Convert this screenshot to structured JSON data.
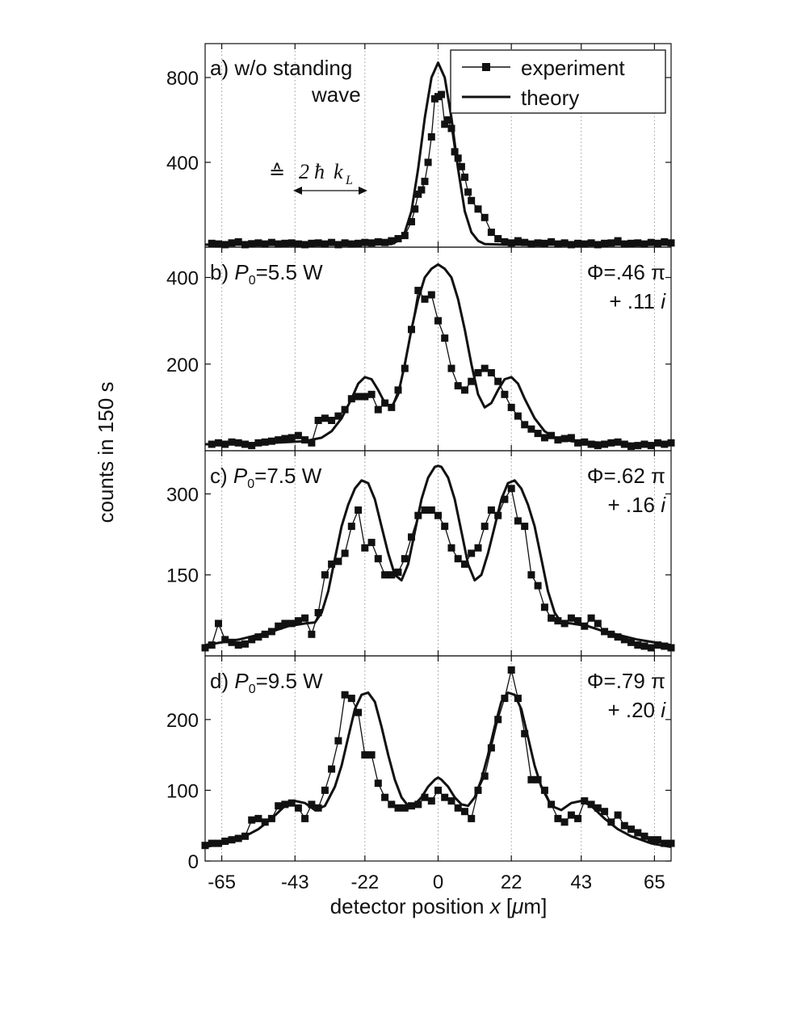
{
  "figure": {
    "ylabel": "counts in 150 s",
    "xlabel_pre": "detector position ",
    "xlabel_var": "x",
    "xlabel_post": " [",
    "xlabel_mu": "μ",
    "xlabel_unit": "m]",
    "legend": {
      "experiment": "experiment",
      "theory": "theory"
    },
    "annotation_symbol": "≙",
    "annotation_two": "2",
    "annotation_hbar": "ħ",
    "annotation_k": "k",
    "annotation_sub": "L",
    "colors": {
      "line": "#111111",
      "grid": "#9a9a9a"
    }
  },
  "chart_data": [
    {
      "type": "line",
      "panel_label": "a) w/o standing",
      "panel_label_2": "wave",
      "xlim": [
        -70,
        70
      ],
      "ylim": [
        0,
        960
      ],
      "yticks": [
        400,
        800
      ],
      "xticks": [
        -65,
        -43,
        -22,
        0,
        22,
        43,
        65
      ],
      "grid": "vertical dotted",
      "legend_position": "top-right",
      "series": [
        {
          "name": "experiment",
          "marker": "square",
          "x": [
            -68,
            -66,
            -64,
            -62,
            -60,
            -58,
            -56,
            -54,
            -52,
            -50,
            -48,
            -46,
            -44,
            -42,
            -40,
            -38,
            -36,
            -34,
            -32,
            -30,
            -28,
            -26,
            -24,
            -22,
            -20,
            -18,
            -16,
            -14,
            -12,
            -10,
            -8,
            -7,
            -6,
            -5,
            -4,
            -3,
            -2,
            -1,
            0,
            1,
            2,
            3,
            4,
            5,
            6,
            7,
            8,
            9,
            10,
            12,
            14,
            16,
            18,
            20,
            22,
            24,
            26,
            28,
            30,
            32,
            34,
            36,
            38,
            40,
            42,
            44,
            46,
            48,
            50,
            52,
            54,
            56,
            58,
            60,
            62,
            64,
            66,
            68,
            70
          ],
          "y": [
            18,
            15,
            12,
            20,
            25,
            12,
            16,
            20,
            15,
            22,
            15,
            18,
            20,
            15,
            12,
            18,
            20,
            15,
            22,
            12,
            20,
            15,
            18,
            22,
            20,
            25,
            22,
            30,
            40,
            55,
            120,
            180,
            250,
            270,
            310,
            400,
            520,
            700,
            710,
            720,
            580,
            600,
            560,
            450,
            420,
            380,
            330,
            260,
            220,
            180,
            140,
            70,
            40,
            25,
            20,
            30,
            22,
            15,
            20,
            18,
            25,
            15,
            20,
            12,
            18,
            15,
            20,
            12,
            18,
            20,
            30,
            15,
            18,
            20,
            15,
            22,
            18,
            25,
            20
          ]
        },
        {
          "name": "theory",
          "x": [
            -70,
            -20,
            -14,
            -12,
            -10,
            -8,
            -6,
            -4,
            -2,
            0,
            2,
            4,
            6,
            8,
            10,
            12,
            14,
            20,
            70
          ],
          "y": [
            12,
            12,
            15,
            30,
            70,
            170,
            370,
            610,
            800,
            870,
            800,
            610,
            370,
            170,
            70,
            30,
            15,
            12,
            12
          ]
        }
      ]
    },
    {
      "type": "line",
      "panel_label_pre": "b) ",
      "panel_label_var": "P",
      "panel_label_sub": "0",
      "panel_label_post": "=5.5 W",
      "phi": "Φ=.46 π",
      "phi_imag": "+ .11 ",
      "phi_i": "i",
      "xlim": [
        -70,
        70
      ],
      "ylim": [
        0,
        470
      ],
      "yticks": [
        200,
        400
      ],
      "xticks": [
        -65,
        -43,
        -22,
        0,
        22,
        43,
        65
      ],
      "grid": "vertical dotted",
      "series": [
        {
          "name": "experiment",
          "marker": "square",
          "x": [
            -68,
            -66,
            -64,
            -62,
            -60,
            -58,
            -56,
            -54,
            -52,
            -50,
            -48,
            -46,
            -44,
            -42,
            -40,
            -38,
            -36,
            -34,
            -32,
            -30,
            -28,
            -26,
            -24,
            -22,
            -20,
            -18,
            -16,
            -14,
            -12,
            -10,
            -8,
            -6,
            -4,
            -2,
            0,
            2,
            4,
            6,
            8,
            10,
            12,
            14,
            16,
            18,
            20,
            22,
            24,
            26,
            28,
            30,
            32,
            34,
            36,
            38,
            40,
            42,
            44,
            46,
            48,
            50,
            52,
            54,
            56,
            58,
            60,
            62,
            64,
            66,
            68,
            70
          ],
          "y": [
            15,
            18,
            15,
            20,
            18,
            15,
            12,
            18,
            20,
            22,
            25,
            28,
            30,
            35,
            25,
            18,
            70,
            75,
            70,
            80,
            95,
            120,
            125,
            125,
            130,
            95,
            110,
            100,
            140,
            190,
            280,
            370,
            350,
            360,
            300,
            260,
            190,
            150,
            140,
            160,
            180,
            190,
            180,
            160,
            130,
            100,
            80,
            60,
            50,
            40,
            30,
            35,
            25,
            28,
            30,
            18,
            20,
            15,
            12,
            15,
            18,
            20,
            15,
            10,
            12,
            15,
            12,
            18,
            15,
            18
          ]
        },
        {
          "name": "theory",
          "x": [
            -70,
            -60,
            -50,
            -45,
            -40,
            -35,
            -32,
            -29,
            -26,
            -24,
            -22,
            -20,
            -18,
            -16,
            -14,
            -12,
            -10,
            -8,
            -6,
            -4,
            -2,
            0,
            2,
            4,
            6,
            8,
            10,
            12,
            14,
            16,
            18,
            20,
            22,
            24,
            26,
            29,
            32,
            35,
            40,
            45,
            50,
            60,
            70
          ],
          "y": [
            15,
            16,
            18,
            20,
            22,
            30,
            45,
            75,
            120,
            155,
            170,
            165,
            140,
            110,
            100,
            130,
            200,
            280,
            350,
            400,
            420,
            430,
            420,
            400,
            350,
            280,
            200,
            130,
            100,
            110,
            140,
            165,
            170,
            155,
            120,
            75,
            45,
            30,
            22,
            20,
            18,
            16,
            15
          ]
        }
      ]
    },
    {
      "type": "line",
      "panel_label_pre": "c) ",
      "panel_label_var": "P",
      "panel_label_sub": "0",
      "panel_label_post": "=7.5 W",
      "phi": "Φ=.62 π",
      "phi_imag": "+ .16 ",
      "phi_i": "i",
      "xlim": [
        -70,
        70
      ],
      "ylim": [
        0,
        380
      ],
      "yticks": [
        150,
        300
      ],
      "xticks": [
        -65,
        -43,
        -22,
        0,
        22,
        43,
        65
      ],
      "grid": "vertical dotted",
      "series": [
        {
          "name": "experiment",
          "marker": "square",
          "x": [
            -70,
            -68,
            -66,
            -64,
            -62,
            -60,
            -58,
            -56,
            -54,
            -52,
            -50,
            -48,
            -46,
            -44,
            -42,
            -40,
            -38,
            -36,
            -34,
            -32,
            -30,
            -28,
            -26,
            -24,
            -22,
            -20,
            -18,
            -16,
            -14,
            -12,
            -10,
            -8,
            -6,
            -4,
            -2,
            0,
            2,
            4,
            6,
            8,
            10,
            12,
            14,
            16,
            18,
            20,
            22,
            24,
            26,
            28,
            30,
            32,
            34,
            36,
            38,
            40,
            42,
            44,
            46,
            48,
            50,
            52,
            54,
            56,
            58,
            60,
            62,
            64,
            66,
            68,
            70
          ],
          "y": [
            15,
            20,
            60,
            30,
            25,
            20,
            22,
            30,
            35,
            40,
            45,
            55,
            60,
            60,
            65,
            70,
            40,
            80,
            150,
            170,
            175,
            190,
            240,
            270,
            200,
            210,
            180,
            150,
            150,
            155,
            180,
            220,
            260,
            270,
            270,
            260,
            240,
            200,
            180,
            170,
            190,
            200,
            240,
            270,
            260,
            290,
            310,
            250,
            240,
            150,
            130,
            90,
            70,
            65,
            60,
            70,
            65,
            55,
            70,
            60,
            45,
            40,
            35,
            30,
            25,
            20,
            18,
            15,
            20,
            18,
            15
          ]
        },
        {
          "name": "theory",
          "x": [
            -70,
            -60,
            -50,
            -45,
            -40,
            -37,
            -35,
            -33,
            -31,
            -29,
            -27,
            -25,
            -23,
            -21,
            -19,
            -17,
            -15,
            -13,
            -11,
            -9,
            -7,
            -5,
            -3,
            -1,
            0,
            1,
            3,
            5,
            7,
            9,
            11,
            13,
            15,
            17,
            19,
            21,
            23,
            25,
            27,
            29,
            31,
            33,
            35,
            37,
            40,
            45,
            50,
            60,
            70
          ],
          "y": [
            20,
            30,
            45,
            55,
            60,
            62,
            80,
            120,
            180,
            240,
            280,
            310,
            325,
            320,
            290,
            240,
            190,
            150,
            140,
            170,
            230,
            290,
            330,
            350,
            352,
            350,
            330,
            290,
            230,
            170,
            140,
            150,
            190,
            240,
            290,
            320,
            325,
            310,
            280,
            240,
            180,
            120,
            80,
            62,
            60,
            55,
            45,
            30,
            20
          ]
        }
      ]
    },
    {
      "type": "line",
      "panel_label_pre": "d) ",
      "panel_label_var": "P",
      "panel_label_sub": "0",
      "panel_label_post": "=9.5 W",
      "phi": "Φ=.79 π",
      "phi_imag": "+ .20 ",
      "phi_i": "i",
      "xlim": [
        -70,
        70
      ],
      "ylim": [
        0,
        290
      ],
      "yticks": [
        0,
        100,
        200
      ],
      "xticks": [
        -65,
        -43,
        -22,
        0,
        22,
        43,
        65
      ],
      "grid": "vertical dotted",
      "series": [
        {
          "name": "experiment",
          "marker": "square",
          "x": [
            -70,
            -68,
            -66,
            -64,
            -62,
            -60,
            -58,
            -56,
            -54,
            -52,
            -50,
            -48,
            -46,
            -44,
            -42,
            -40,
            -38,
            -36,
            -34,
            -32,
            -30,
            -28,
            -26,
            -24,
            -22,
            -20,
            -18,
            -16,
            -14,
            -12,
            -10,
            -8,
            -6,
            -4,
            -2,
            0,
            2,
            4,
            6,
            8,
            10,
            12,
            14,
            16,
            18,
            20,
            22,
            24,
            26,
            28,
            30,
            32,
            34,
            36,
            38,
            40,
            42,
            44,
            46,
            48,
            50,
            52,
            54,
            56,
            58,
            60,
            62,
            64,
            66,
            68,
            70
          ],
          "y": [
            22,
            25,
            25,
            28,
            30,
            32,
            35,
            58,
            60,
            55,
            60,
            78,
            80,
            82,
            75,
            60,
            80,
            75,
            100,
            130,
            170,
            235,
            230,
            210,
            150,
            150,
            110,
            90,
            80,
            75,
            75,
            78,
            80,
            90,
            85,
            100,
            90,
            85,
            75,
            70,
            60,
            100,
            120,
            160,
            200,
            230,
            270,
            230,
            180,
            115,
            115,
            100,
            80,
            60,
            55,
            65,
            60,
            85,
            80,
            75,
            70,
            55,
            65,
            50,
            45,
            40,
            35,
            30,
            30,
            25,
            25
          ]
        },
        {
          "name": "theory",
          "x": [
            -70,
            -64,
            -58,
            -54,
            -50,
            -46,
            -43,
            -40,
            -37,
            -34,
            -31,
            -29,
            -27,
            -25,
            -23,
            -21,
            -19,
            -17,
            -15,
            -13,
            -11,
            -9,
            -7,
            -5,
            -3,
            -1,
            0,
            1,
            3,
            5,
            7,
            9,
            11,
            13,
            15,
            17,
            19,
            21,
            23,
            25,
            27,
            29,
            31,
            34,
            37,
            40,
            43,
            46,
            50,
            54,
            58,
            64,
            70
          ],
          "y": [
            20,
            25,
            35,
            45,
            60,
            78,
            85,
            82,
            72,
            78,
            105,
            135,
            175,
            215,
            235,
            238,
            225,
            190,
            150,
            115,
            90,
            78,
            80,
            90,
            105,
            115,
            118,
            115,
            105,
            90,
            80,
            78,
            90,
            115,
            150,
            190,
            225,
            238,
            235,
            215,
            175,
            135,
            105,
            78,
            72,
            82,
            85,
            78,
            60,
            45,
            35,
            25,
            20
          ]
        }
      ]
    }
  ]
}
